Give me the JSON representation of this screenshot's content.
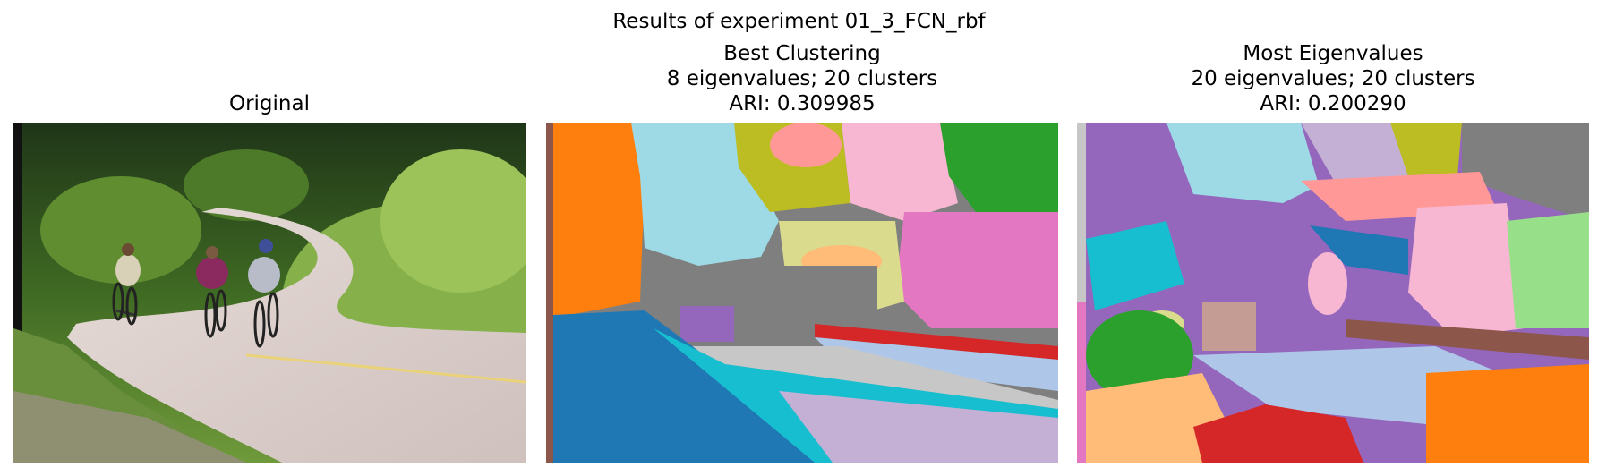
{
  "figure": {
    "suptitle": "Results of experiment 01_3_FCN_rbf"
  },
  "panels": [
    {
      "title_lines": [
        "Original"
      ]
    },
    {
      "title_lines": [
        "Best Clustering",
        "8 eigenvalues; 20 clusters",
        "ARI: 0.309985"
      ]
    },
    {
      "title_lines": [
        "Most Eigenvalues",
        "20 eigenvalues; 20 clusters",
        "ARI: 0.200290"
      ]
    }
  ]
}
